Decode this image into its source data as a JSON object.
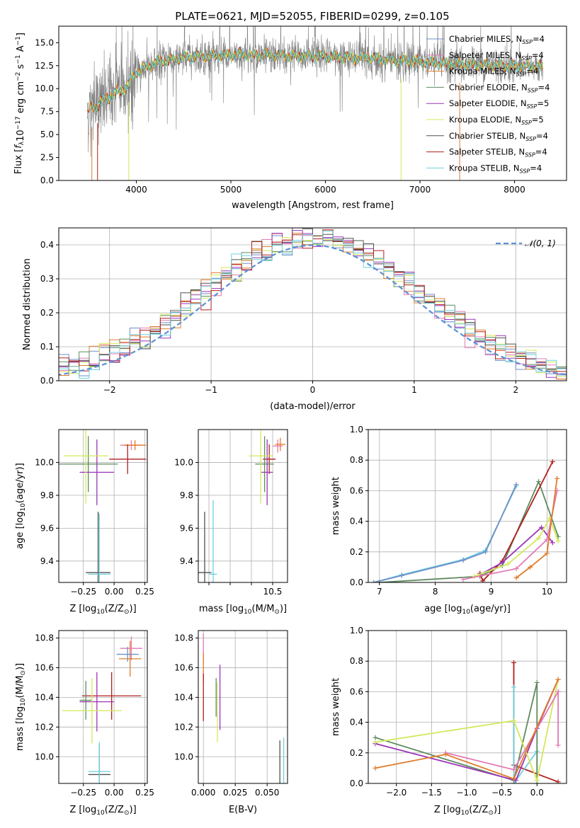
{
  "title": "PLATE=0621, MJD=52055, FIBERID=0299, z=0.105",
  "colors": {
    "c0": "#6f8fc8",
    "c1": "#e27ab4",
    "c2": "#e07b2a",
    "c3": "#5e8a5e",
    "c4": "#9b35b8",
    "c5": "#d4e85a",
    "c6": "#505050",
    "c7": "#b21e1e",
    "c8": "#6ed0e0",
    "gray": "#808080",
    "norm": "#5b8fd6"
  },
  "chart_data": [
    {
      "type": "line",
      "xlabel": "wavelength [Angstrom, rest frame]",
      "ylabel_parts": [
        "Flux [",
        "f",
        "λ",
        "10",
        "−17",
        " erg cm",
        "−2",
        " s",
        "−1",
        " A",
        "−1",
        "]"
      ],
      "xlim": [
        3180,
        8550
      ],
      "ylim": [
        0,
        16.8
      ],
      "xticks": [
        4000,
        5000,
        6000,
        7000,
        8000
      ],
      "yticks": [
        0.0,
        2.5,
        5.0,
        7.5,
        10.0,
        12.5,
        15.0
      ],
      "continuum": [
        [
          3500,
          7.6
        ],
        [
          3700,
          9.0
        ],
        [
          3900,
          10.2
        ],
        [
          4000,
          11.8
        ],
        [
          4200,
          12.8
        ],
        [
          4500,
          13.4
        ],
        [
          5000,
          13.7
        ],
        [
          5500,
          13.6
        ],
        [
          6000,
          13.5
        ],
        [
          6500,
          13.3
        ],
        [
          7000,
          12.9
        ],
        [
          7500,
          12.6
        ],
        [
          8000,
          12.5
        ],
        [
          8300,
          12.3
        ]
      ],
      "legend_position": "upper right",
      "legend": [
        {
          "label": "Chabrier MILES, N",
          "sub": "SSP",
          "val": "=4",
          "color": "c0"
        },
        {
          "label": "Salpeter MILES, N",
          "sub": "SSP",
          "val": "=4",
          "color": "c1"
        },
        {
          "label": "Kroupa MILES, N",
          "sub": "SSP",
          "val": "=4",
          "color": "c2"
        },
        {
          "label": "Chabrier ELODIE, N",
          "sub": "SSP",
          "val": "=4",
          "color": "c3"
        },
        {
          "label": "Salpeter ELODIE, N",
          "sub": "SSP",
          "val": "=5",
          "color": "c4"
        },
        {
          "label": "Kroupa ELODIE, N",
          "sub": "SSP",
          "val": "=5",
          "color": "c5"
        },
        {
          "label": "Chabrier STELIB, N",
          "sub": "SSP",
          "val": "=4",
          "color": "c6"
        },
        {
          "label": "Salpeter STELIB, N",
          "sub": "SSP",
          "val": "=4",
          "color": "c7"
        },
        {
          "label": "Kroupa STELIB, N",
          "sub": "SSP",
          "val": "=4",
          "color": "c8"
        }
      ],
      "grid": false
    },
    {
      "type": "histogram",
      "xlabel": "(data-model)/error",
      "ylabel": "Normed distribution",
      "xlim": [
        -2.5,
        2.5
      ],
      "ylim": [
        0,
        0.45
      ],
      "xticks": [
        -2,
        -1,
        0,
        1,
        2
      ],
      "xtick_labels": [
        "−2",
        "−1",
        "0",
        "1",
        "2"
      ],
      "yticks": [
        0.0,
        0.1,
        0.2,
        0.3,
        0.4
      ],
      "grid": true,
      "bin_width": 0.1,
      "legend": [
        {
          "label": "𝒩(0, 1)",
          "color": "norm",
          "style": "dashed"
        }
      ]
    },
    {
      "type": "scatter",
      "xlabel_parts": [
        "Z [log",
        "10",
        "(Z/Z",
        "⊙",
        ")]"
      ],
      "ylabel_parts": [
        "age  [log",
        "10",
        "(age/yr)]"
      ],
      "xlim": [
        -0.45,
        0.27
      ],
      "ylim": [
        9.27,
        10.2
      ],
      "xticks": [
        -0.25,
        0.0,
        0.25
      ],
      "xtick_labels": [
        "−0.25",
        "0.00",
        "0.25"
      ],
      "yticks": [
        9.4,
        9.6,
        9.8,
        10.0
      ],
      "grid": true,
      "points": [
        {
          "x": 0.14,
          "y": 10.105,
          "xerr": 0.09,
          "yerr": 0.03,
          "color": "c1"
        },
        {
          "x": 0.17,
          "y": 10.105,
          "xerr": 0.09,
          "yerr": 0.03,
          "color": "c2"
        },
        {
          "x": 0.11,
          "y": 10.02,
          "xerr": 0.15,
          "yerr": 0.09,
          "color": "c7"
        },
        {
          "x": -0.21,
          "y": 9.99,
          "xerr": 0.24,
          "yerr": 0.17,
          "color": "c3"
        },
        {
          "x": -0.14,
          "y": 9.94,
          "xerr": 0.14,
          "yerr": 0.2,
          "color": "c4"
        },
        {
          "x": -0.23,
          "y": 10.04,
          "xerr": 0.18,
          "yerr": 0.29,
          "color": "c5"
        },
        {
          "x": -0.13,
          "y": 9.33,
          "xerr": 0.1,
          "yerr": 0.37,
          "color": "c6"
        },
        {
          "x": -0.12,
          "y": 9.32,
          "xerr": 0.09,
          "yerr": 0.37,
          "color": "c8"
        }
      ]
    },
    {
      "type": "scatter",
      "xlabel_parts": [
        "mass [log",
        "10",
        "(M/M",
        "⊙",
        ")]"
      ],
      "ylabel_parts": [],
      "xlim": [
        8.75,
        10.85
      ],
      "ylim": [
        9.27,
        10.2
      ],
      "xticks": [
        9.0,
        9.5,
        10.0,
        10.5
      ],
      "xtick_labels": [
        "",
        "",
        "",
        "10.5"
      ],
      "yticks": [
        9.4,
        9.6,
        9.8,
        10.0
      ],
      "grid": true,
      "points": [
        {
          "x": 10.62,
          "y": 10.1,
          "xerr": 0.12,
          "yerr": 0.04,
          "color": "c1"
        },
        {
          "x": 10.68,
          "y": 10.11,
          "xerr": 0.12,
          "yerr": 0.04,
          "color": "c2"
        },
        {
          "x": 10.42,
          "y": 10.02,
          "xerr": 0.15,
          "yerr": 0.09,
          "color": "c7"
        },
        {
          "x": 10.31,
          "y": 9.99,
          "xerr": 0.22,
          "yerr": 0.17,
          "color": "c3"
        },
        {
          "x": 10.37,
          "y": 9.94,
          "xerr": 0.14,
          "yerr": 0.2,
          "color": "c4"
        },
        {
          "x": 10.22,
          "y": 10.04,
          "xerr": 0.28,
          "yerr": 0.29,
          "color": "c5"
        },
        {
          "x": 8.9,
          "y": 9.33,
          "xerr": 0.16,
          "yerr": 0.37,
          "color": "c6"
        },
        {
          "x": 9.1,
          "y": 9.32,
          "xerr": 0.09,
          "yerr": 0.45,
          "color": "c8"
        }
      ]
    },
    {
      "type": "line",
      "xlabel_parts": [
        "age  [log",
        "10",
        "(age/yr)]"
      ],
      "ylabel": "mass weight",
      "xlim": [
        6.8,
        10.35
      ],
      "ylim": [
        0,
        1
      ],
      "xticks": [
        7,
        8,
        9,
        10
      ],
      "yticks": [
        0.0,
        0.2,
        0.4,
        0.6,
        0.8,
        1.0
      ],
      "grid": true,
      "series": [
        {
          "color": "c8",
          "x": [
            6.9,
            7.4,
            8.5,
            8.9,
            9.45
          ],
          "y": [
            0.0,
            0.05,
            0.15,
            0.21,
            0.63
          ]
        },
        {
          "color": "c0",
          "x": [
            6.9,
            7.4,
            8.5,
            8.9,
            9.45
          ],
          "y": [
            0.0,
            0.045,
            0.145,
            0.2,
            0.64
          ]
        },
        {
          "color": "c3",
          "x": [
            7.0,
            8.8,
            9.2,
            9.85,
            10.2
          ],
          "y": [
            0.0,
            0.04,
            0.11,
            0.66,
            0.3
          ]
        },
        {
          "color": "c7",
          "x": [
            8.8,
            8.85,
            9.2,
            10.1
          ],
          "y": [
            0.06,
            0.01,
            0.14,
            0.79
          ]
        },
        {
          "color": "c4",
          "x": [
            8.8,
            9.2,
            9.9,
            10.1
          ],
          "y": [
            0.05,
            0.13,
            0.36,
            0.26
          ]
        },
        {
          "color": "c5",
          "x": [
            8.7,
            9.3,
            9.85,
            10.05,
            10.2
          ],
          "y": [
            0.04,
            0.12,
            0.29,
            0.42,
            0.27
          ]
        },
        {
          "color": "c1",
          "x": [
            8.5,
            9.45,
            10.0,
            10.18
          ],
          "y": [
            0.02,
            0.09,
            0.28,
            0.6
          ]
        },
        {
          "color": "c2",
          "x": [
            9.45,
            9.7,
            10.0,
            10.18
          ],
          "y": [
            0.03,
            0.1,
            0.19,
            0.68
          ]
        }
      ]
    },
    {
      "type": "scatter",
      "xlabel_parts": [
        "Z [log",
        "10",
        "(Z/Z",
        "⊙",
        ")]"
      ],
      "ylabel_parts": [
        "mass [log",
        "10",
        "(M/M",
        "⊙",
        ")]"
      ],
      "xlim": [
        -0.45,
        0.27
      ],
      "ylim": [
        9.82,
        10.85
      ],
      "xticks": [
        -0.25,
        0.0,
        0.25
      ],
      "xtick_labels": [
        "−0.25",
        "0.00",
        "0.25"
      ],
      "yticks": [
        10.0,
        10.2,
        10.4,
        10.6,
        10.8
      ],
      "grid": true,
      "points": [
        {
          "x": 0.14,
          "y": 10.73,
          "xerr": 0.09,
          "yerr": 0.08,
          "color": "c1"
        },
        {
          "x": 0.13,
          "y": 10.66,
          "xerr": 0.09,
          "yerr": 0.12,
          "color": "c2"
        },
        {
          "x": 0.11,
          "y": 10.69,
          "xerr": 0.09,
          "yerr": 0.05,
          "color": "c0"
        },
        {
          "x": -0.02,
          "y": 10.41,
          "xerr": 0.24,
          "yerr": 0.16,
          "color": "c7"
        },
        {
          "x": -0.23,
          "y": 10.38,
          "xerr": 0.05,
          "yerr": 0.13,
          "color": "c3"
        },
        {
          "x": -0.14,
          "y": 10.37,
          "xerr": 0.14,
          "yerr": 0.2,
          "color": "c4"
        },
        {
          "x": -0.18,
          "y": 10.31,
          "xerr": 0.24,
          "yerr": 0.22,
          "color": "c5"
        },
        {
          "x": -0.12,
          "y": 9.88,
          "xerr": 0.09,
          "yerr": 0.2,
          "color": "c6"
        },
        {
          "x": -0.12,
          "y": 9.9,
          "xerr": 0.09,
          "yerr": 0.2,
          "color": "c8"
        }
      ]
    },
    {
      "type": "scatter",
      "xlabel": "E(B-V)",
      "ylabel_parts": [],
      "xlim": [
        -0.004,
        0.066
      ],
      "ylim": [
        9.82,
        10.85
      ],
      "xticks": [
        0.0,
        0.025,
        0.05
      ],
      "xtick_labels": [
        "0.000",
        "0.025",
        "0.050"
      ],
      "yticks": [
        10.0,
        10.2,
        10.4,
        10.6,
        10.8
      ],
      "grid": true,
      "points": [
        {
          "x": 0.0,
          "y": 10.73,
          "xerr": 0,
          "yerr": 0.1,
          "color": "c1"
        },
        {
          "x": 0.0,
          "y": 10.6,
          "xerr": 0,
          "yerr": 0.1,
          "color": "c2"
        },
        {
          "x": 0.0,
          "y": 10.4,
          "xerr": 0,
          "yerr": 0.16,
          "color": "c7"
        },
        {
          "x": 0.01,
          "y": 10.4,
          "xerr": 0,
          "yerr": 0.13,
          "color": "c3"
        },
        {
          "x": 0.013,
          "y": 10.4,
          "xerr": 0,
          "yerr": 0.22,
          "color": "c4"
        },
        {
          "x": 0.011,
          "y": 10.3,
          "xerr": 0,
          "yerr": 0.2,
          "color": "c5"
        },
        {
          "x": 0.06,
          "y": 9.92,
          "xerr": 0,
          "yerr": 0.19,
          "color": "c6"
        },
        {
          "x": 0.063,
          "y": 9.95,
          "xerr": 0,
          "yerr": 0.18,
          "color": "c8"
        }
      ]
    },
    {
      "type": "line",
      "xlabel_parts": [
        "Z [log",
        "10",
        "(Z/Z",
        "⊙",
        ")]"
      ],
      "ylabel": "mass weight",
      "xlim": [
        -2.4,
        0.42
      ],
      "ylim": [
        0,
        1
      ],
      "xticks": [
        -2.0,
        -1.5,
        -1.0,
        -0.5,
        0.0
      ],
      "xtick_labels": [
        "−2.0",
        "−1.5",
        "−1.0",
        "−0.5",
        "0.0"
      ],
      "yticks": [
        0.0,
        0.2,
        0.4,
        0.6,
        0.8,
        1.0
      ],
      "grid": true,
      "series": [
        {
          "color": "c7",
          "x": [
            -0.33,
            -0.33,
            0.3
          ],
          "y": [
            0.79,
            0.12,
            0.01
          ]
        },
        {
          "color": "c8",
          "x": [
            -0.33,
            -0.33,
            0.0,
            0.0
          ],
          "y": [
            0.63,
            0.0,
            0.21,
            0.02
          ]
        },
        {
          "color": "c3",
          "x": [
            -2.3,
            -0.33,
            0.0,
            0.0
          ],
          "y": [
            0.3,
            0.02,
            0.66,
            0.0
          ]
        },
        {
          "color": "c4",
          "x": [
            -2.3,
            -0.3,
            0.0,
            0.3
          ],
          "y": [
            0.26,
            0.02,
            0.36,
            0.68
          ]
        },
        {
          "color": "c5",
          "x": [
            -2.3,
            -0.33,
            0.0,
            0.3
          ],
          "y": [
            0.27,
            0.41,
            0.02,
            0.68
          ]
        },
        {
          "color": "c1",
          "x": [
            -1.3,
            -0.33,
            0.3,
            0.3
          ],
          "y": [
            0.2,
            0.09,
            0.6,
            0.25
          ]
        },
        {
          "color": "c2",
          "x": [
            -2.3,
            -1.3,
            -0.33,
            0.3
          ],
          "y": [
            0.1,
            0.19,
            0.03,
            0.68
          ]
        }
      ]
    }
  ]
}
